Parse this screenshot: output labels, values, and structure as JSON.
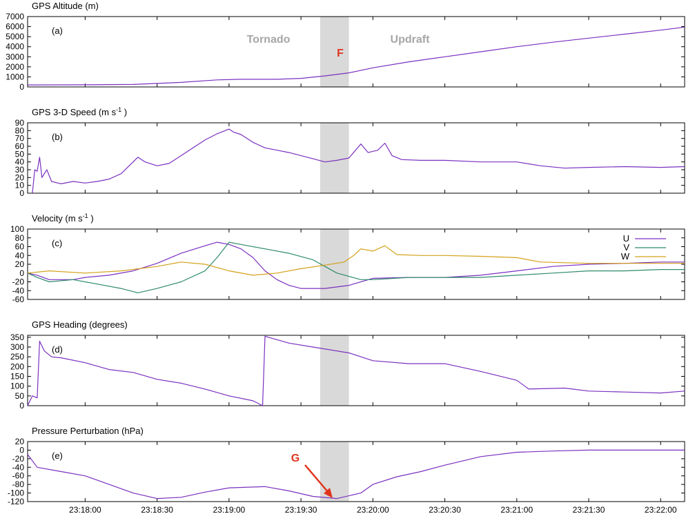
{
  "colors": {
    "u": "#7a2fc0",
    "v": "#2e8b6a",
    "w": "#d4a017",
    "shade": "#d9d9d9",
    "annotation_red": "#e0331c",
    "annotation_gray": "#a6a6a6",
    "axis": "#000000"
  },
  "time_axis": {
    "start": "23:17:36",
    "end": "23:22:10",
    "tick_labels": [
      "23:18:00",
      "23:18:30",
      "23:19:00",
      "23:19:30",
      "23:20:00",
      "23:20:30",
      "23:21:00",
      "23:21:30",
      "23:22:00"
    ]
  },
  "shaded_interval": {
    "start": "23:19:38",
    "end": "23:19:50"
  },
  "annotations": {
    "tornado": "Tornado",
    "updraft": "Updraft",
    "f": "F",
    "g": "G"
  },
  "chart_data": [
    {
      "type": "line",
      "panel_label": "(a)",
      "title": "GPS Altitude (m)",
      "ylim": [
        0,
        7000
      ],
      "yticks": [
        "0",
        "1000",
        "2000",
        "3000",
        "4000",
        "5000",
        "6000",
        "7000"
      ],
      "grid": false,
      "series": [
        {
          "color_key": "u",
          "points": [
            [
              "23:17:36",
              200
            ],
            [
              "23:18:00",
              210
            ],
            [
              "23:18:20",
              250
            ],
            [
              "23:18:40",
              450
            ],
            [
              "23:18:55",
              700
            ],
            [
              "23:19:05",
              760
            ],
            [
              "23:19:20",
              760
            ],
            [
              "23:19:30",
              850
            ],
            [
              "23:19:40",
              1100
            ],
            [
              "23:19:50",
              1400
            ],
            [
              "23:20:00",
              1900
            ],
            [
              "23:20:15",
              2500
            ],
            [
              "23:20:30",
              3000
            ],
            [
              "23:20:45",
              3500
            ],
            [
              "23:21:00",
              4000
            ],
            [
              "23:21:15",
              4450
            ],
            [
              "23:21:30",
              4850
            ],
            [
              "23:21:45",
              5250
            ],
            [
              "23:22:00",
              5650
            ],
            [
              "23:22:10",
              5950
            ]
          ]
        }
      ]
    },
    {
      "type": "line",
      "panel_label": "(b)",
      "title": "GPS 3-D Speed (m s-1)",
      "ylim": [
        0,
        90
      ],
      "yticks": [
        "0",
        "10",
        "20",
        "30",
        "40",
        "50",
        "60",
        "70",
        "80",
        "90"
      ],
      "grid": false,
      "series": [
        {
          "color_key": "u",
          "points": [
            [
              "23:17:38",
              0
            ],
            [
              "23:17:39",
              30
            ],
            [
              "23:17:40",
              28
            ],
            [
              "23:17:41",
              46
            ],
            [
              "23:17:42",
              20
            ],
            [
              "23:17:44",
              30
            ],
            [
              "23:17:46",
              15
            ],
            [
              "23:17:50",
              12
            ],
            [
              "23:17:55",
              15
            ],
            [
              "23:18:00",
              13
            ],
            [
              "23:18:05",
              15
            ],
            [
              "23:18:10",
              18
            ],
            [
              "23:18:15",
              25
            ],
            [
              "23:18:20",
              40
            ],
            [
              "23:18:22",
              46
            ],
            [
              "23:18:25",
              40
            ],
            [
              "23:18:30",
              35
            ],
            [
              "23:18:35",
              38
            ],
            [
              "23:18:40",
              48
            ],
            [
              "23:18:45",
              58
            ],
            [
              "23:18:50",
              68
            ],
            [
              "23:18:55",
              76
            ],
            [
              "23:19:00",
              82
            ],
            [
              "23:19:02",
              78
            ],
            [
              "23:19:05",
              75
            ],
            [
              "23:19:10",
              65
            ],
            [
              "23:19:15",
              58
            ],
            [
              "23:19:20",
              55
            ],
            [
              "23:19:25",
              52
            ],
            [
              "23:19:30",
              48
            ],
            [
              "23:19:35",
              44
            ],
            [
              "23:19:40",
              40
            ],
            [
              "23:19:45",
              42
            ],
            [
              "23:19:50",
              45
            ],
            [
              "23:19:55",
              63
            ],
            [
              "23:19:58",
              52
            ],
            [
              "23:20:02",
              55
            ],
            [
              "23:20:05",
              64
            ],
            [
              "23:20:08",
              48
            ],
            [
              "23:20:12",
              43
            ],
            [
              "23:20:20",
              42
            ],
            [
              "23:20:30",
              42
            ],
            [
              "23:20:45",
              40
            ],
            [
              "23:21:00",
              40
            ],
            [
              "23:21:10",
              35
            ],
            [
              "23:21:20",
              32
            ],
            [
              "23:21:30",
              33
            ],
            [
              "23:21:45",
              34
            ],
            [
              "23:22:00",
              33
            ],
            [
              "23:22:10",
              34
            ]
          ]
        }
      ]
    },
    {
      "type": "line",
      "panel_label": "(c)",
      "title": "Velocity (m s-1)",
      "ylim": [
        -60,
        100
      ],
      "yticks": [
        "-60",
        "-40",
        "-20",
        "0",
        "20",
        "40",
        "60",
        "80",
        "100"
      ],
      "grid": false,
      "legend": "top-right",
      "series": [
        {
          "name": "U",
          "color_key": "u",
          "points": [
            [
              "23:17:36",
              0
            ],
            [
              "23:17:40",
              -5
            ],
            [
              "23:17:45",
              -15
            ],
            [
              "23:17:55",
              -15
            ],
            [
              "23:18:00",
              -10
            ],
            [
              "23:18:10",
              -5
            ],
            [
              "23:18:20",
              5
            ],
            [
              "23:18:30",
              22
            ],
            [
              "23:18:40",
              45
            ],
            [
              "23:18:50",
              62
            ],
            [
              "23:18:55",
              70
            ],
            [
              "23:19:00",
              65
            ],
            [
              "23:19:05",
              55
            ],
            [
              "23:19:10",
              35
            ],
            [
              "23:19:15",
              5
            ],
            [
              "23:19:20",
              -15
            ],
            [
              "23:19:25",
              -28
            ],
            [
              "23:19:30",
              -35
            ],
            [
              "23:19:40",
              -35
            ],
            [
              "23:19:50",
              -28
            ],
            [
              "23:20:00",
              -12
            ],
            [
              "23:20:15",
              -10
            ],
            [
              "23:20:30",
              -10
            ],
            [
              "23:20:45",
              -5
            ],
            [
              "23:21:00",
              5
            ],
            [
              "23:21:15",
              15
            ],
            [
              "23:21:30",
              20
            ],
            [
              "23:21:45",
              22
            ],
            [
              "23:22:00",
              25
            ],
            [
              "23:22:10",
              25
            ]
          ]
        },
        {
          "name": "V",
          "color_key": "v",
          "points": [
            [
              "23:17:36",
              0
            ],
            [
              "23:17:40",
              -10
            ],
            [
              "23:17:45",
              -20
            ],
            [
              "23:17:55",
              -15
            ],
            [
              "23:18:05",
              -25
            ],
            [
              "23:18:15",
              -35
            ],
            [
              "23:18:22",
              -45
            ],
            [
              "23:18:30",
              -35
            ],
            [
              "23:18:40",
              -20
            ],
            [
              "23:18:50",
              5
            ],
            [
              "23:18:55",
              35
            ],
            [
              "23:19:00",
              70
            ],
            [
              "23:19:05",
              65
            ],
            [
              "23:19:15",
              55
            ],
            [
              "23:19:25",
              45
            ],
            [
              "23:19:35",
              30
            ],
            [
              "23:19:40",
              15
            ],
            [
              "23:19:45",
              0
            ],
            [
              "23:19:55",
              -15
            ],
            [
              "23:20:00",
              -15
            ],
            [
              "23:20:15",
              -10
            ],
            [
              "23:20:30",
              -10
            ],
            [
              "23:20:45",
              -10
            ],
            [
              "23:21:00",
              -5
            ],
            [
              "23:21:15",
              0
            ],
            [
              "23:21:30",
              5
            ],
            [
              "23:21:45",
              5
            ],
            [
              "23:22:00",
              8
            ],
            [
              "23:22:10",
              8
            ]
          ]
        },
        {
          "name": "W",
          "color_key": "w",
          "points": [
            [
              "23:17:36",
              0
            ],
            [
              "23:17:45",
              5
            ],
            [
              "23:18:00",
              0
            ],
            [
              "23:18:15",
              5
            ],
            [
              "23:18:30",
              15
            ],
            [
              "23:18:40",
              25
            ],
            [
              "23:18:50",
              20
            ],
            [
              "23:19:00",
              5
            ],
            [
              "23:19:10",
              -5
            ],
            [
              "23:19:20",
              0
            ],
            [
              "23:19:30",
              10
            ],
            [
              "23:19:40",
              18
            ],
            [
              "23:19:48",
              25
            ],
            [
              "23:19:52",
              40
            ],
            [
              "23:19:55",
              55
            ],
            [
              "23:20:00",
              50
            ],
            [
              "23:20:05",
              62
            ],
            [
              "23:20:10",
              42
            ],
            [
              "23:20:20",
              40
            ],
            [
              "23:20:30",
              40
            ],
            [
              "23:20:45",
              38
            ],
            [
              "23:21:00",
              35
            ],
            [
              "23:21:10",
              25
            ],
            [
              "23:21:30",
              22
            ],
            [
              "23:21:45",
              22
            ],
            [
              "23:22:00",
              22
            ],
            [
              "23:22:10",
              22
            ]
          ]
        }
      ]
    },
    {
      "type": "line",
      "panel_label": "(d)",
      "title": "GPS Heading (degrees)",
      "ylim": [
        0,
        360
      ],
      "yticks": [
        "0",
        "50",
        "100",
        "150",
        "200",
        "250",
        "300",
        "350"
      ],
      "grid": false,
      "series": [
        {
          "color_key": "u",
          "points": [
            [
              "23:17:36",
              0
            ],
            [
              "23:17:38",
              50
            ],
            [
              "23:17:40",
              40
            ],
            [
              "23:17:41",
              330
            ],
            [
              "23:17:43",
              280
            ],
            [
              "23:17:46",
              250
            ],
            [
              "23:17:50",
              245
            ],
            [
              "23:18:00",
              220
            ],
            [
              "23:18:10",
              185
            ],
            [
              "23:18:20",
              170
            ],
            [
              "23:18:30",
              135
            ],
            [
              "23:18:40",
              115
            ],
            [
              "23:18:50",
              85
            ],
            [
              "23:19:00",
              50
            ],
            [
              "23:19:10",
              25
            ],
            [
              "23:19:14",
              0
            ],
            [
              "23:19:15",
              355
            ],
            [
              "23:19:25",
              320
            ],
            [
              "23:19:35",
              300
            ],
            [
              "23:19:50",
              270
            ],
            [
              "23:20:00",
              230
            ],
            [
              "23:20:15",
              215
            ],
            [
              "23:20:30",
              215
            ],
            [
              "23:20:45",
              175
            ],
            [
              "23:21:00",
              130
            ],
            [
              "23:21:05",
              85
            ],
            [
              "23:21:20",
              90
            ],
            [
              "23:21:30",
              75
            ],
            [
              "23:21:45",
              70
            ],
            [
              "23:22:00",
              65
            ],
            [
              "23:22:10",
              75
            ]
          ]
        }
      ]
    },
    {
      "type": "line",
      "panel_label": "(e)",
      "title": "Pressure Perturbation (hPa)",
      "ylim": [
        -120,
        20
      ],
      "yticks": [
        "-120",
        "-100",
        "-80",
        "-60",
        "-40",
        "-20",
        "0",
        "20"
      ],
      "grid": false,
      "series": [
        {
          "color_key": "u",
          "points": [
            [
              "23:17:36",
              -10
            ],
            [
              "23:17:40",
              -40
            ],
            [
              "23:17:50",
              -50
            ],
            [
              "23:18:00",
              -60
            ],
            [
              "23:18:10",
              -80
            ],
            [
              "23:18:20",
              -100
            ],
            [
              "23:18:30",
              -113
            ],
            [
              "23:18:40",
              -110
            ],
            [
              "23:18:50",
              -98
            ],
            [
              "23:19:00",
              -88
            ],
            [
              "23:19:15",
              -85
            ],
            [
              "23:19:25",
              -95
            ],
            [
              "23:19:35",
              -108
            ],
            [
              "23:19:45",
              -113
            ],
            [
              "23:19:55",
              -100
            ],
            [
              "23:20:00",
              -80
            ],
            [
              "23:20:10",
              -62
            ],
            [
              "23:20:20",
              -50
            ],
            [
              "23:20:30",
              -35
            ],
            [
              "23:20:45",
              -15
            ],
            [
              "23:21:00",
              -5
            ],
            [
              "23:21:15",
              -2
            ],
            [
              "23:21:30",
              0
            ],
            [
              "23:21:45",
              0
            ],
            [
              "23:22:00",
              0
            ],
            [
              "23:22:10",
              0
            ]
          ]
        }
      ]
    }
  ]
}
